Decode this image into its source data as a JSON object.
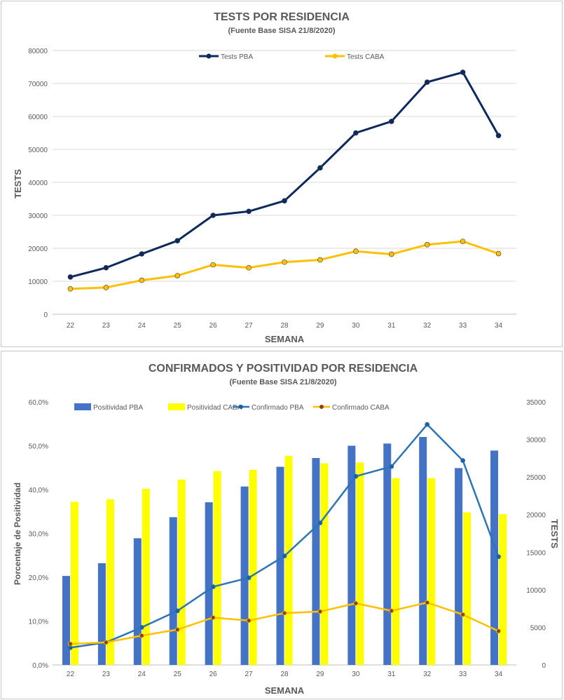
{
  "chart_data": [
    {
      "type": "line",
      "title": "TESTS POR RESIDENCIA",
      "subtitle": "(Fuente Base SISA 21/8/2020)",
      "xlabel": "SEMANA",
      "ylabel": "TESTS",
      "categories": [
        "22",
        "23",
        "24",
        "25",
        "26",
        "27",
        "28",
        "29",
        "30",
        "31",
        "32",
        "33",
        "34"
      ],
      "ylim": [
        0,
        80000
      ],
      "yticks": [
        "0",
        "10000",
        "20000",
        "30000",
        "40000",
        "50000",
        "60000",
        "70000",
        "80000"
      ],
      "grid": true,
      "legend_position": "top",
      "series": [
        {
          "name": "Tests PBA",
          "color": "#0d2a5e",
          "values": [
            11300,
            14100,
            18300,
            22300,
            30000,
            31200,
            34400,
            44400,
            55000,
            58500,
            70400,
            73400,
            54200
          ]
        },
        {
          "name": "Tests CABA",
          "color": "#ffc000",
          "values": [
            7700,
            8100,
            10300,
            11700,
            15000,
            14100,
            15800,
            16500,
            19100,
            18200,
            21100,
            22100,
            18400
          ]
        }
      ]
    },
    {
      "type": "bar",
      "title": "CONFIRMADOS Y POSITIVIDAD POR RESIDENCIA",
      "subtitle": "(Fuente Base SISA 21/8/2020)",
      "xlabel": "SEMANA",
      "ylabel": "Porcentaje de Positividad",
      "ylabel_right": "TESTS",
      "categories": [
        "22",
        "23",
        "24",
        "25",
        "26",
        "27",
        "28",
        "29",
        "30",
        "31",
        "32",
        "33",
        "34"
      ],
      "ylim": [
        0,
        60
      ],
      "ylim_right": [
        0,
        35000
      ],
      "yticks": [
        "0,0%",
        "10,0%",
        "20,0%",
        "30,0%",
        "40,0%",
        "50,0%",
        "60,0%"
      ],
      "yticks_right": [
        "0",
        "5000",
        "10000",
        "15000",
        "20000",
        "25000",
        "30000",
        "35000"
      ],
      "grid": false,
      "legend_position": "top",
      "series": [
        {
          "name": "Positividad PBA",
          "kind": "bar",
          "axis": "left",
          "color": "#4472c4",
          "values": [
            20.3,
            23.2,
            28.9,
            33.7,
            37.1,
            40.7,
            45.2,
            47.2,
            50.0,
            50.5,
            52.0,
            44.9,
            48.9
          ]
        },
        {
          "name": "Positividad CABA",
          "kind": "bar",
          "axis": "left",
          "color": "#ffff00",
          "values": [
            37.2,
            37.8,
            40.2,
            42.3,
            44.2,
            44.5,
            47.7,
            46.0,
            46.2,
            42.6,
            42.6,
            34.8,
            34.4
          ]
        },
        {
          "name": "Confirmado PBA",
          "kind": "line",
          "axis": "right",
          "color": "#2e75b6",
          "values": [
            2300,
            3000,
            5000,
            7200,
            10400,
            11600,
            14500,
            18900,
            25100,
            26400,
            32000,
            27200,
            14400
          ]
        },
        {
          "name": "Confirmado CABA",
          "kind": "line",
          "axis": "right",
          "color": "#ffc000",
          "values": [
            2800,
            3000,
            3900,
            4700,
            6300,
            5900,
            6900,
            7100,
            8200,
            7200,
            8300,
            6700,
            4500
          ]
        }
      ]
    }
  ]
}
